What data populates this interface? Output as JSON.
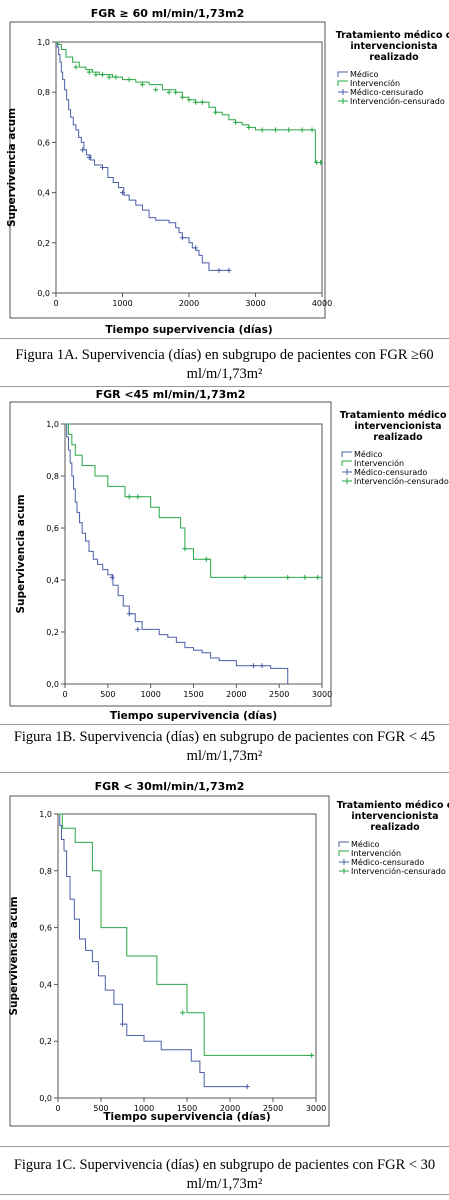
{
  "panels": [
    {
      "caption": "Figura 1A. Supervivencia (días) en subgrupo de pacientes con FGR ≥60 ml/m/1,73m²"
    },
    {
      "caption": "Figura 1B. Supervivencia (días) en subgrupo de pacientes con FGR < 45 ml/m/1,73m²"
    },
    {
      "caption": "Figura 1C. Supervivencia (días) en subgrupo de pacientes con FGR < 30 ml/m/1,73m²"
    }
  ],
  "colors": {
    "medico": "#4a5fa8",
    "intervencion": "#27a845",
    "frame": "#555555"
  },
  "chart_data": [
    {
      "type": "line",
      "title": "FGR ≥ 60 ml/min/1,73m2",
      "xlabel": "Tiempo supervivencia (días)",
      "ylabel": "Supervivencia acum",
      "xlim": [
        0,
        4000
      ],
      "ylim": [
        0,
        1
      ],
      "xticks": [
        0,
        1000,
        2000,
        3000,
        4000
      ],
      "yticks": [
        0.0,
        0.2,
        0.4,
        0.6,
        0.8,
        1.0
      ],
      "ytick_labels": [
        "0,0",
        "0,2",
        "0,4",
        "0,6",
        "0,8",
        "1,0"
      ],
      "legend": {
        "title_lines": [
          "Tratamiento médico o",
          "intervencionista",
          "realizado"
        ],
        "items": [
          "Médico",
          "Intervención",
          "Médico-censurado",
          "Intervención-censurado"
        ]
      },
      "series": [
        {
          "name": "Médico",
          "x": [
            0,
            20,
            40,
            60,
            80,
            100,
            130,
            160,
            190,
            220,
            260,
            300,
            340,
            380,
            420,
            460,
            520,
            580,
            640,
            700,
            780,
            860,
            940,
            1020,
            1100,
            1200,
            1300,
            1400,
            1500,
            1600,
            1700,
            1800,
            1850,
            1900,
            1950,
            2000,
            2050,
            2100,
            2150,
            2200,
            2300,
            2400,
            2600
          ],
          "y": [
            1.0,
            0.98,
            0.95,
            0.92,
            0.88,
            0.85,
            0.81,
            0.77,
            0.73,
            0.7,
            0.67,
            0.65,
            0.62,
            0.6,
            0.57,
            0.55,
            0.53,
            0.51,
            0.51,
            0.5,
            0.46,
            0.44,
            0.42,
            0.39,
            0.37,
            0.35,
            0.33,
            0.3,
            0.29,
            0.29,
            0.28,
            0.26,
            0.24,
            0.22,
            0.22,
            0.2,
            0.18,
            0.17,
            0.15,
            0.12,
            0.09,
            0.09,
            0.09
          ],
          "censored_x": [
            400,
            500,
            700,
            1000,
            1900,
            2100,
            2450,
            2600
          ],
          "censored_y": [
            0.57,
            0.54,
            0.5,
            0.4,
            0.22,
            0.18,
            0.09,
            0.09
          ]
        },
        {
          "name": "Intervención",
          "x": [
            0,
            30,
            80,
            150,
            250,
            350,
            450,
            550,
            650,
            750,
            850,
            1000,
            1200,
            1400,
            1600,
            1800,
            1900,
            2000,
            2100,
            2200,
            2300,
            2400,
            2500,
            2600,
            2700,
            2800,
            2900,
            3000,
            3100,
            3300,
            3500,
            3700,
            3850,
            3900,
            4000
          ],
          "y": [
            1.0,
            0.99,
            0.97,
            0.94,
            0.92,
            0.9,
            0.89,
            0.88,
            0.87,
            0.87,
            0.86,
            0.85,
            0.84,
            0.83,
            0.81,
            0.8,
            0.78,
            0.77,
            0.76,
            0.76,
            0.74,
            0.72,
            0.71,
            0.69,
            0.68,
            0.67,
            0.66,
            0.65,
            0.65,
            0.65,
            0.65,
            0.65,
            0.65,
            0.52,
            0.52
          ],
          "censored_x": [
            300,
            500,
            600,
            700,
            800,
            900,
            1100,
            1300,
            1500,
            1700,
            1800,
            1900,
            2000,
            2100,
            2200,
            2400,
            2700,
            2900,
            3100,
            3300,
            3500,
            3700,
            3850,
            3920,
            3980
          ],
          "censored_y": [
            0.9,
            0.88,
            0.87,
            0.87,
            0.86,
            0.86,
            0.85,
            0.83,
            0.81,
            0.8,
            0.8,
            0.78,
            0.77,
            0.76,
            0.76,
            0.72,
            0.68,
            0.66,
            0.65,
            0.65,
            0.65,
            0.65,
            0.65,
            0.52,
            0.52
          ]
        }
      ]
    },
    {
      "type": "line",
      "title": "FGR <45 ml/min/1,73m2",
      "xlabel": "Tiempo supervivencia (días)",
      "ylabel": "Supervivencia acum",
      "xlim": [
        0,
        3000
      ],
      "ylim": [
        0,
        1
      ],
      "xticks": [
        0,
        500,
        1000,
        1500,
        2000,
        2500,
        3000
      ],
      "yticks": [
        0.0,
        0.2,
        0.4,
        0.6,
        0.8,
        1.0
      ],
      "ytick_labels": [
        "0,0",
        "0,2",
        "0,4",
        "0,6",
        "0,8",
        "1,0"
      ],
      "legend": {
        "title_lines": [
          "Tratamiento médico o",
          "intervencionista",
          "realizado"
        ],
        "items": [
          "Médico",
          "Intervención",
          "Médico-censurado",
          "Intervención-censurado"
        ]
      },
      "series": [
        {
          "name": "Médico",
          "x": [
            0,
            20,
            40,
            60,
            80,
            100,
            120,
            140,
            170,
            200,
            240,
            280,
            330,
            380,
            440,
            500,
            560,
            620,
            680,
            750,
            820,
            900,
            1000,
            1100,
            1200,
            1300,
            1400,
            1500,
            1600,
            1700,
            1800,
            2000,
            2200,
            2400,
            2600
          ],
          "y": [
            1.0,
            0.95,
            0.9,
            0.85,
            0.8,
            0.75,
            0.7,
            0.66,
            0.62,
            0.58,
            0.55,
            0.51,
            0.48,
            0.46,
            0.44,
            0.42,
            0.38,
            0.34,
            0.3,
            0.27,
            0.24,
            0.21,
            0.21,
            0.19,
            0.18,
            0.16,
            0.14,
            0.13,
            0.12,
            0.1,
            0.09,
            0.07,
            0.07,
            0.06,
            0.0
          ],
          "censored_x": [
            550,
            750,
            850,
            2200,
            2300
          ],
          "censored_y": [
            0.41,
            0.27,
            0.21,
            0.07,
            0.07
          ]
        },
        {
          "name": "Intervención",
          "x": [
            0,
            40,
            80,
            120,
            200,
            350,
            500,
            700,
            800,
            1000,
            1100,
            1350,
            1400,
            1500,
            1650,
            1700,
            2000,
            3000
          ],
          "y": [
            1.0,
            0.96,
            0.92,
            0.88,
            0.84,
            0.8,
            0.76,
            0.72,
            0.72,
            0.68,
            0.64,
            0.6,
            0.52,
            0.48,
            0.48,
            0.41,
            0.41,
            0.41
          ],
          "censored_x": [
            750,
            850,
            1400,
            1650,
            2100,
            2600,
            2800,
            2950
          ],
          "censored_y": [
            0.72,
            0.72,
            0.52,
            0.48,
            0.41,
            0.41,
            0.41,
            0.41
          ]
        }
      ]
    },
    {
      "type": "line",
      "title": "FGR < 30ml/min/1,73m2",
      "xlabel": "Tiempo supervivencia (días)",
      "ylabel": "Supervivencia acum",
      "xlim": [
        0,
        3000
      ],
      "ylim": [
        0,
        1
      ],
      "xticks": [
        0,
        500,
        1000,
        1500,
        2000,
        2500,
        3000
      ],
      "yticks": [
        0.0,
        0.2,
        0.4,
        0.6,
        0.8,
        1.0
      ],
      "ytick_labels": [
        "0,0",
        "0,2",
        "0,4",
        "0,6",
        "0,8",
        "1,0"
      ],
      "legend": {
        "title_lines": [
          "Tratamiento médico o",
          "intervencionista",
          "realizado"
        ],
        "items": [
          "Médico",
          "Intervención",
          "Médico-censurado",
          "Intervención-censurado"
        ]
      },
      "series": [
        {
          "name": "Médico",
          "x": [
            0,
            20,
            40,
            70,
            100,
            140,
            190,
            250,
            320,
            400,
            470,
            550,
            650,
            750,
            800,
            1000,
            1200,
            1400,
            1550,
            1650,
            1700,
            2200
          ],
          "y": [
            1.0,
            0.96,
            0.91,
            0.87,
            0.78,
            0.7,
            0.63,
            0.56,
            0.52,
            0.48,
            0.43,
            0.38,
            0.33,
            0.26,
            0.22,
            0.2,
            0.17,
            0.17,
            0.13,
            0.09,
            0.04,
            0.04
          ],
          "censored_x": [
            750,
            2200
          ],
          "censored_y": [
            0.26,
            0.04
          ]
        },
        {
          "name": "Intervención",
          "x": [
            0,
            50,
            200,
            400,
            500,
            800,
            1150,
            1500,
            1700,
            2950
          ],
          "y": [
            1.0,
            0.95,
            0.9,
            0.8,
            0.6,
            0.5,
            0.4,
            0.3,
            0.15,
            0.15
          ],
          "censored_x": [
            1450,
            2950
          ],
          "censored_y": [
            0.3,
            0.15
          ]
        }
      ]
    }
  ]
}
